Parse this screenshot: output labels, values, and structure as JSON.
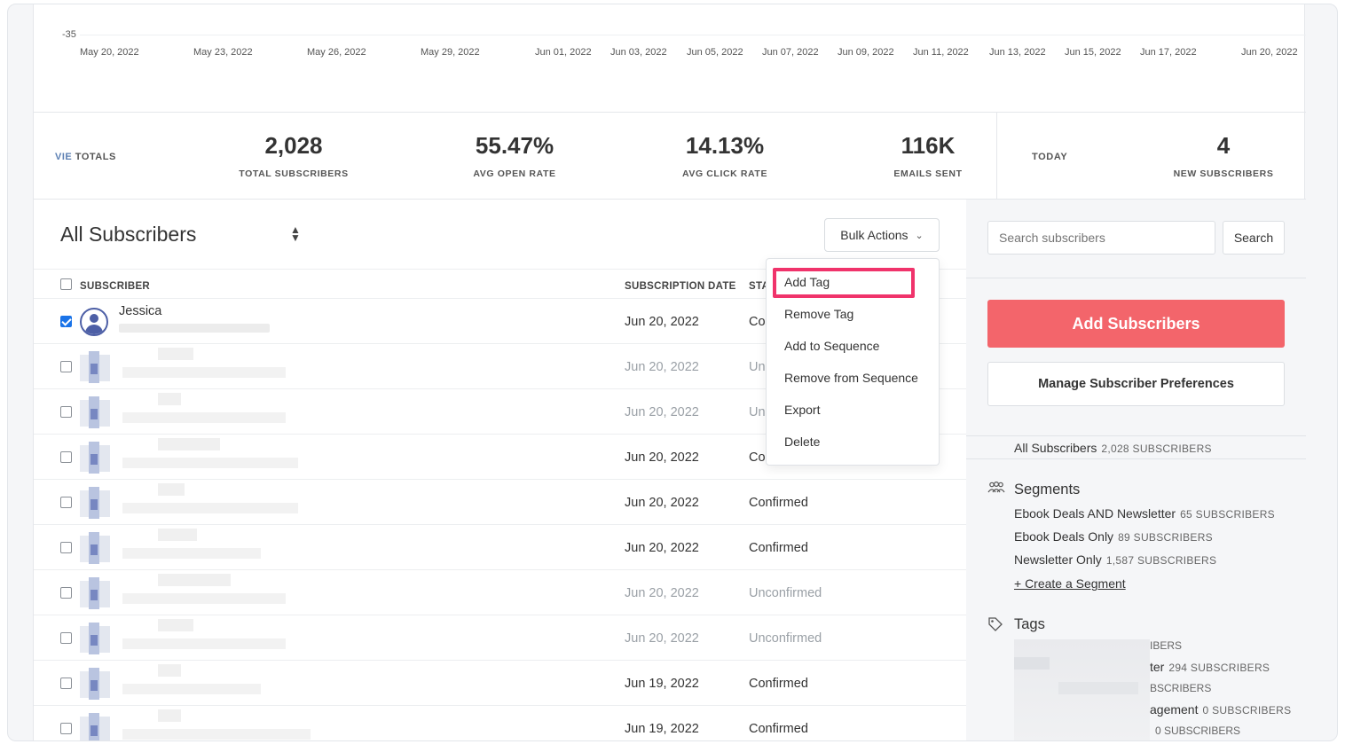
{
  "chart_axis": {
    "y_tick": "-35",
    "x_ticks": [
      "May 20, 2022",
      "May 23, 2022",
      "May 26, 2022",
      "May 29, 2022",
      "Jun 01, 2022",
      "Jun 03, 2022",
      "Jun 05, 2022",
      "Jun 07, 2022",
      "Jun 09, 2022",
      "Jun 11, 2022",
      "Jun 13, 2022",
      "Jun 15, 2022",
      "Jun 17, 2022",
      "Jun 20, 2022"
    ]
  },
  "totals": {
    "label_prefix": "VIE",
    "label": "TOTALS",
    "stats": [
      {
        "value": "2,028",
        "label": "TOTAL SUBSCRIBERS"
      },
      {
        "value": "55.47%",
        "label": "AVG OPEN RATE"
      },
      {
        "value": "14.13%",
        "label": "AVG CLICK RATE"
      },
      {
        "value": "116K",
        "label": "EMAILS SENT"
      }
    ],
    "today_label": "TODAY",
    "today_stat": {
      "value": "4",
      "label": "NEW SUBSCRIBERS"
    }
  },
  "list": {
    "title": "All Subscribers",
    "sort_icon": "sort-arrows-icon",
    "bulk_actions_label": "Bulk Actions",
    "columns": {
      "subscriber": "SUBSCRIBER",
      "subscription_date": "SUBSCRIPTION DATE",
      "status": "STA"
    },
    "first_row": {
      "name": "Jessica",
      "date": "Jun 20, 2022",
      "status": "Co",
      "checked": true
    },
    "rows": [
      {
        "date": "Jun 20, 2022",
        "status": "Un",
        "unconfirmed": true
      },
      {
        "date": "Jun 20, 2022",
        "status": "Un",
        "unconfirmed": true
      },
      {
        "date": "Jun 20, 2022",
        "status": "Co",
        "unconfirmed": false
      },
      {
        "date": "Jun 20, 2022",
        "status": "Confirmed",
        "unconfirmed": false
      },
      {
        "date": "Jun 20, 2022",
        "status": "Confirmed",
        "unconfirmed": false
      },
      {
        "date": "Jun 20, 2022",
        "status": "Unconfirmed",
        "unconfirmed": true
      },
      {
        "date": "Jun 20, 2022",
        "status": "Unconfirmed",
        "unconfirmed": true
      },
      {
        "date": "Jun 19, 2022",
        "status": "Confirmed",
        "unconfirmed": false
      },
      {
        "date": "Jun 19, 2022",
        "status": "Confirmed",
        "unconfirmed": false
      }
    ]
  },
  "bulk_menu": {
    "items": [
      "Add Tag",
      "Remove Tag",
      "Add to Sequence",
      "Remove from Sequence",
      "Export",
      "Delete"
    ],
    "highlight_color": "#f0336b"
  },
  "sidebar": {
    "search_placeholder": "Search subscribers",
    "search_button": "Search",
    "add_button": "Add Subscribers",
    "add_button_color": "#f3656b",
    "manage_button": "Manage Subscriber Preferences",
    "all_subscribers": {
      "label": "All Subscribers",
      "count": "2,028 SUBSCRIBERS"
    },
    "segments": {
      "title": "Segments",
      "icon": "people-icon",
      "items": [
        {
          "name": "Ebook Deals AND Newsletter",
          "count": "65 SUBSCRIBERS"
        },
        {
          "name": "Ebook Deals Only",
          "count": "89 SUBSCRIBERS"
        },
        {
          "name": "Newsletter Only",
          "count": "1,587 SUBSCRIBERS"
        }
      ],
      "create_link": "+ Create a Segment"
    },
    "tags": {
      "title": "Tags",
      "icon": "tag-icon",
      "partial_items": [
        {
          "name": "",
          "count": "IBERS"
        },
        {
          "name": "ter",
          "count": "294 SUBSCRIBERS"
        },
        {
          "name": "",
          "count": "BSCRIBERS"
        },
        {
          "name": "agement",
          "count": "0 SUBSCRIBERS"
        },
        {
          "name": "",
          "count": "0 SUBSCRIBERS"
        }
      ]
    }
  }
}
